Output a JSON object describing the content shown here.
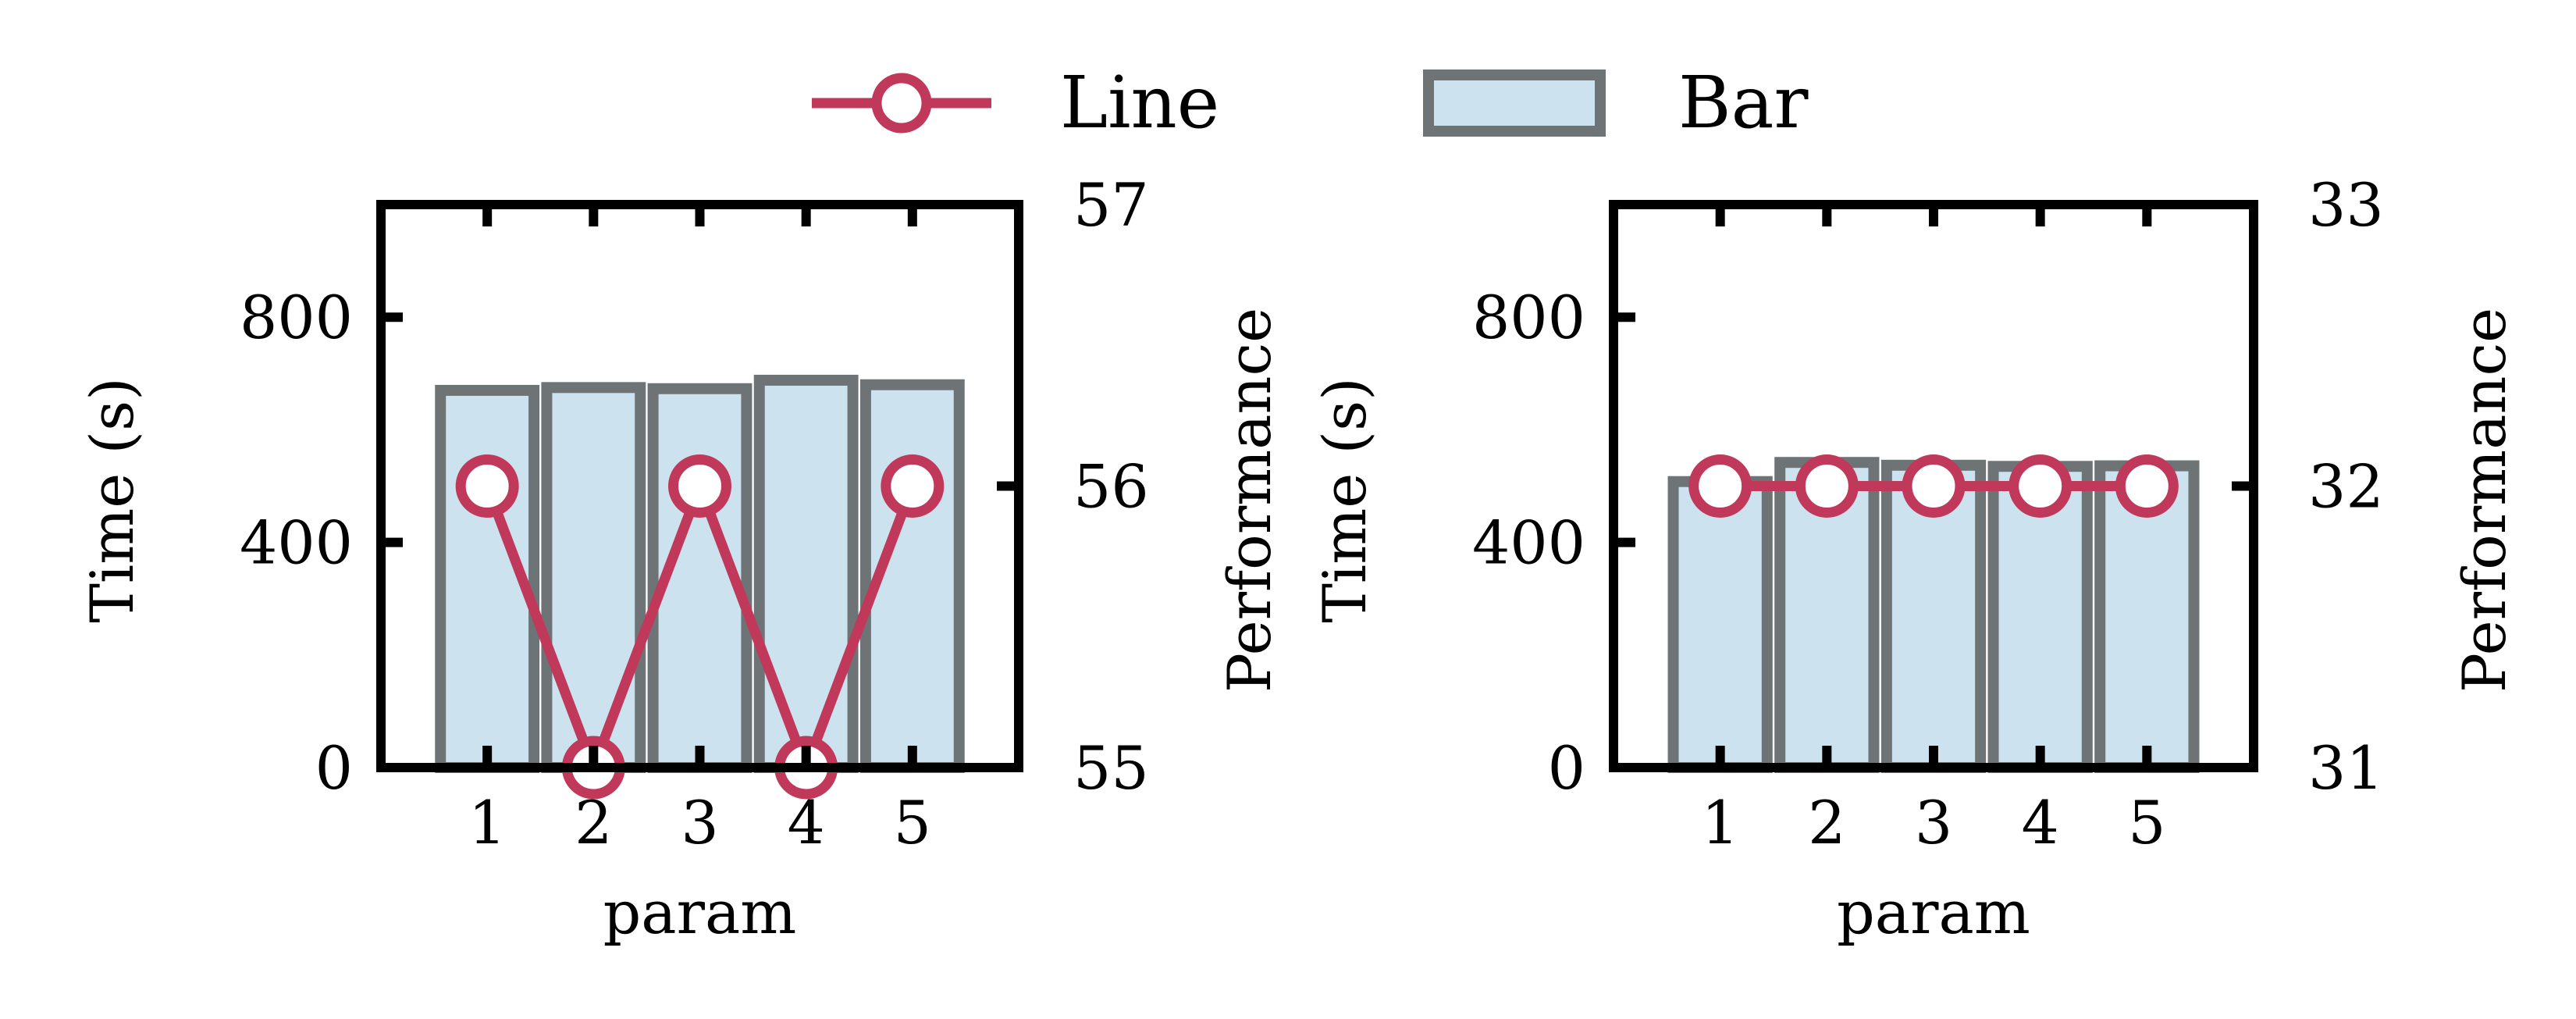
{
  "colors": {
    "bar_fill": "#cce3ef",
    "bar_edge": "#6e7475",
    "line": "#c0395a",
    "axis": "#000000"
  },
  "legend": {
    "placement": "top-center",
    "entries": [
      {
        "label": "Line",
        "kind": "line-marker"
      },
      {
        "label": "Bar",
        "kind": "bar-patch"
      }
    ]
  },
  "chart_data": [
    {
      "type": "bar+line",
      "categories": [
        1,
        2,
        3,
        4,
        5
      ],
      "bar_values": [
        670,
        675,
        673,
        688,
        680
      ],
      "line_values": [
        56,
        55,
        56,
        55,
        56
      ],
      "xlabel": "param",
      "ylabel_left": "Time (s)",
      "ylabel_right": "Performance",
      "xlim": [
        0,
        6
      ],
      "ylim_left": [
        0,
        1000
      ],
      "ylim_right": [
        55,
        57
      ],
      "xticks": [
        1,
        2,
        3,
        4,
        5
      ],
      "yticks_left": [
        0,
        400,
        800
      ],
      "yticks_right": [
        55,
        56,
        57
      ],
      "grid": false
    },
    {
      "type": "bar+line",
      "categories": [
        1,
        2,
        3,
        4,
        5
      ],
      "bar_values": [
        508,
        542,
        537,
        535,
        536
      ],
      "line_values": [
        32,
        32,
        32,
        32,
        32
      ],
      "xlabel": "param",
      "ylabel_left": "Time (s)",
      "ylabel_right": "Performance",
      "xlim": [
        0,
        6
      ],
      "ylim_left": [
        0,
        1000
      ],
      "ylim_right": [
        31,
        33
      ],
      "xticks": [
        1,
        2,
        3,
        4,
        5
      ],
      "yticks_left": [
        0,
        400,
        800
      ],
      "yticks_right": [
        31,
        32,
        33
      ],
      "grid": false
    }
  ]
}
